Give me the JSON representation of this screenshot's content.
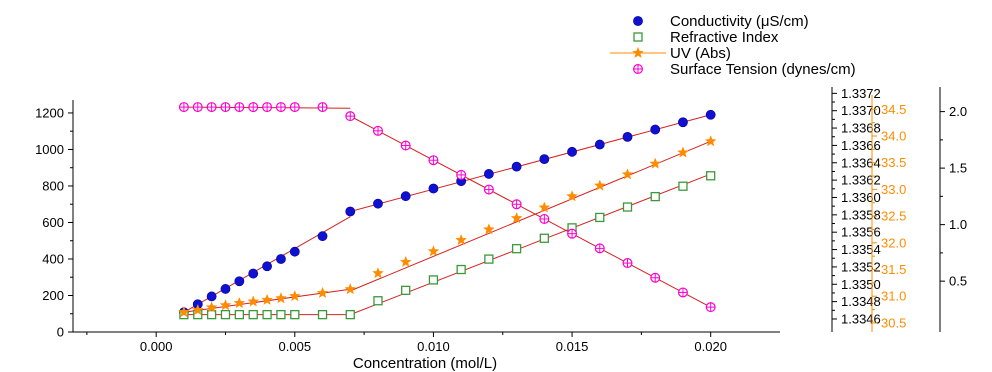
{
  "chart_data": {
    "type": "scatter",
    "xlabel": "Concentration (mol/L)",
    "xlim": [
      -0.003,
      0.0225
    ],
    "xticks": [
      "0.000",
      "0.005",
      "0.010",
      "0.015",
      "0.020"
    ],
    "legend_position": "top-right",
    "grid": false,
    "axes": {
      "conductivity": {
        "ylim": [
          0,
          1260
        ],
        "ticks": [
          "0",
          "200",
          "400",
          "600",
          "800",
          "1000",
          "1200"
        ],
        "color": "#000000"
      },
      "refractive": {
        "ylim": [
          1.33445,
          1.33725
        ],
        "ticks": [
          "1.3346",
          "1.3348",
          "1.3350",
          "1.3352",
          "1.3354",
          "1.3356",
          "1.3358",
          "1.3360",
          "1.3362",
          "1.3364",
          "1.3366",
          "1.3368",
          "1.3370",
          "1.3372"
        ],
        "color": "#000000"
      },
      "uv": {
        "ylim": [
          30.33,
          34.73
        ],
        "ticks": [
          "30.5",
          "31.0",
          "31.5",
          "32.0",
          "32.5",
          "33.0",
          "33.5",
          "34.0",
          "34.5"
        ],
        "color": "#ff8c00"
      },
      "surface": {
        "ylim": [
          0.05,
          2.2
        ],
        "ticks": [
          "0.5",
          "1.0",
          "1.5",
          "2.0"
        ],
        "color": "#000000"
      }
    },
    "series": [
      {
        "name": "Conductivity (μS/cm)",
        "axis": "conductivity",
        "color": "#1010d0",
        "marker": "circle",
        "x": [
          0.001,
          0.0015,
          0.002,
          0.0025,
          0.003,
          0.0035,
          0.004,
          0.0045,
          0.005,
          0.006,
          0.007,
          0.008,
          0.009,
          0.01,
          0.011,
          0.012,
          0.013,
          0.014,
          0.015,
          0.016,
          0.017,
          0.018,
          0.019,
          0.02
        ],
        "y": [
          108,
          152,
          195,
          236,
          278,
          320,
          360,
          400,
          440,
          525,
          660,
          703,
          744,
          786,
          826,
          866,
          906,
          947,
          987,
          1027,
          1069,
          1109,
          1149,
          1190
        ],
        "fits": [
          [
            [
              0.001,
              108
            ],
            [
              0.007,
              632
            ]
          ],
          [
            [
              0.007,
              660
            ],
            [
              0.02,
              1190
            ]
          ]
        ]
      },
      {
        "name": "Refractive Index",
        "axis": "refractive",
        "color": "#3a9a3a",
        "marker": "square",
        "x": [
          0.001,
          0.0015,
          0.002,
          0.0025,
          0.003,
          0.0035,
          0.004,
          0.0045,
          0.005,
          0.006,
          0.007,
          0.008,
          0.009,
          0.01,
          0.011,
          0.012,
          0.013,
          0.014,
          0.015,
          0.016,
          0.017,
          0.018,
          0.019,
          0.02
        ],
        "y": [
          1.33465,
          1.33465,
          1.33465,
          1.33465,
          1.33465,
          1.33465,
          1.33465,
          1.33465,
          1.33465,
          1.33465,
          1.33465,
          1.33481,
          1.33493,
          1.33505,
          1.33517,
          1.33529,
          1.33541,
          1.33553,
          1.33565,
          1.33577,
          1.33589,
          1.33601,
          1.33613,
          1.33625
        ],
        "fits": [
          [
            [
              0.001,
              1.33465
            ],
            [
              0.007,
              1.33465
            ]
          ],
          [
            [
              0.007,
              1.33465
            ],
            [
              0.02,
              1.33627
            ]
          ]
        ]
      },
      {
        "name": "UV (Abs)",
        "axis": "uv",
        "color": "#ff8c00",
        "marker": "star",
        "x": [
          0.001,
          0.0015,
          0.002,
          0.0025,
          0.003,
          0.0035,
          0.004,
          0.0045,
          0.005,
          0.006,
          0.007,
          0.008,
          0.009,
          0.01,
          0.011,
          0.012,
          0.013,
          0.014,
          0.015,
          0.016,
          0.017,
          0.018,
          0.019,
          0.02
        ],
        "y": [
          30.7,
          30.74,
          30.79,
          30.83,
          30.87,
          30.9,
          30.93,
          30.96,
          31.0,
          31.06,
          31.13,
          31.43,
          31.64,
          31.84,
          32.05,
          32.25,
          32.46,
          32.66,
          32.87,
          33.07,
          33.28,
          33.48,
          33.69,
          33.9
        ],
        "fits": [
          [
            [
              0.001,
              30.7
            ],
            [
              0.007,
              31.13
            ]
          ],
          [
            [
              0.007,
              31.1
            ],
            [
              0.02,
              33.9
            ]
          ]
        ]
      },
      {
        "name": "Surface Tension (dynes/cm)",
        "axis": "surface",
        "color": "#ff00cc",
        "marker": "circle-plus",
        "x": [
          0.001,
          0.0015,
          0.002,
          0.0025,
          0.003,
          0.0035,
          0.004,
          0.0045,
          0.005,
          0.006,
          0.007,
          0.008,
          0.009,
          0.01,
          0.011,
          0.012,
          0.013,
          0.014,
          0.015,
          0.016,
          0.017,
          0.018,
          0.019,
          0.02
        ],
        "y": [
          2.04,
          2.04,
          2.04,
          2.04,
          2.04,
          2.04,
          2.04,
          2.04,
          2.04,
          2.04,
          1.96,
          1.83,
          1.7,
          1.57,
          1.44,
          1.31,
          1.18,
          1.05,
          0.92,
          0.79,
          0.66,
          0.53,
          0.4,
          0.27
        ],
        "fits": [
          [
            [
              0.001,
              2.04
            ],
            [
              0.007,
              2.03
            ]
          ],
          [
            [
              0.007,
              1.96
            ],
            [
              0.02,
              0.27
            ]
          ]
        ]
      }
    ]
  }
}
